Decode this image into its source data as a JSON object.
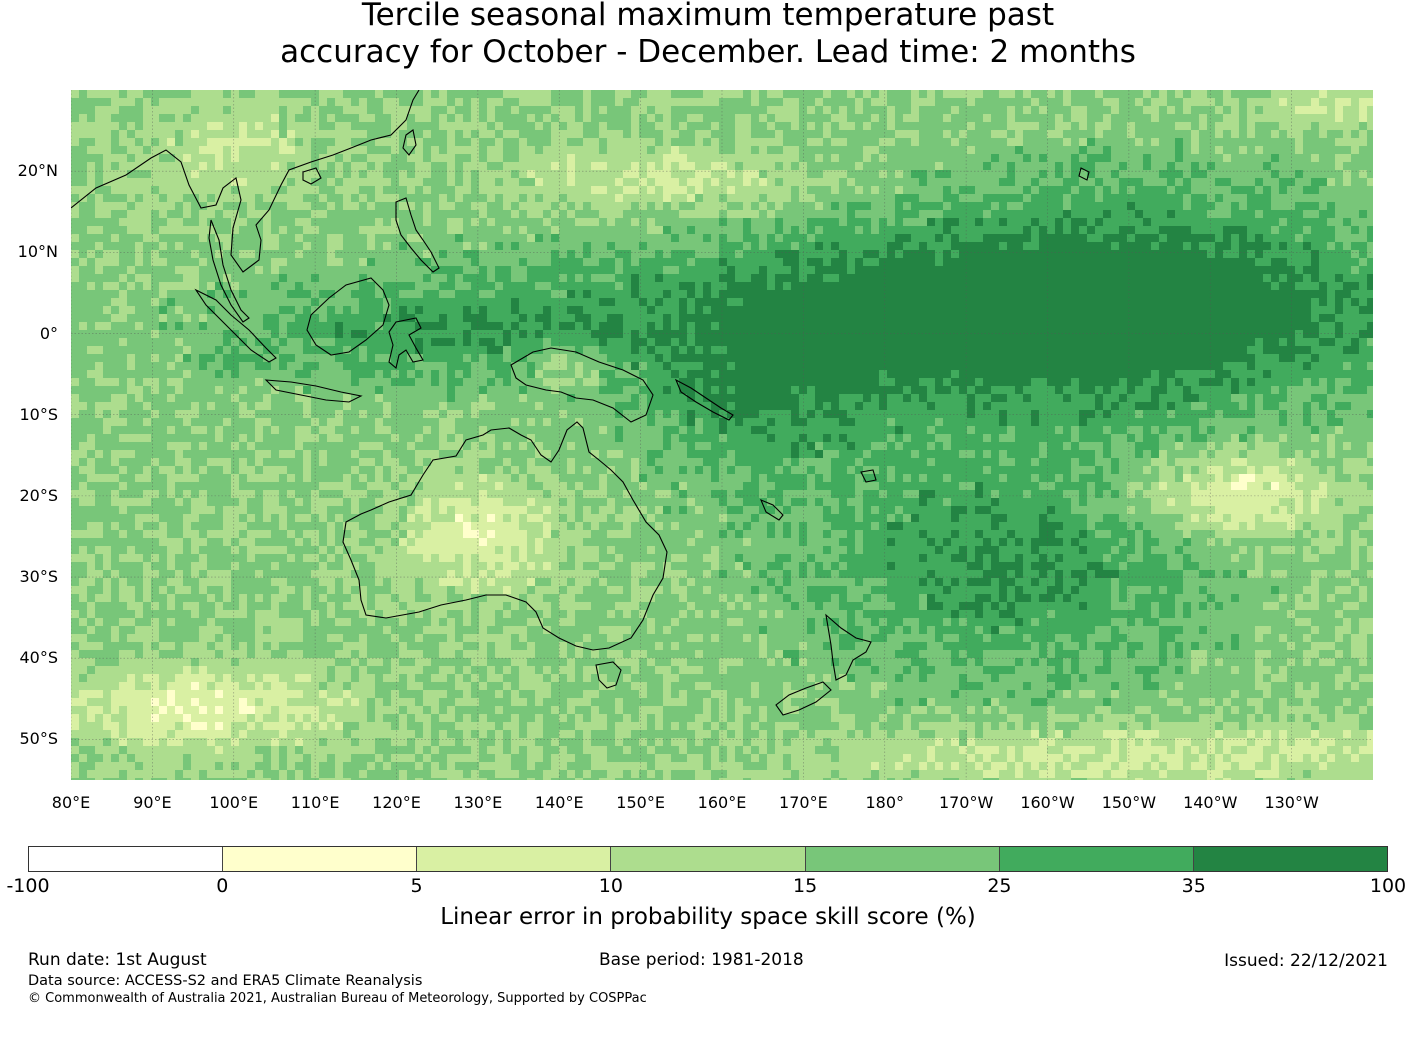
{
  "title": {
    "line1": "Tercile seasonal maximum temperature past",
    "line2": "accuracy for October - December. Lead time: 2 months"
  },
  "map": {
    "lat_labels": [
      "20°N",
      "10°N",
      "0°",
      "10°S",
      "20°S",
      "30°S",
      "40°S",
      "50°S"
    ],
    "lat_values": [
      20,
      10,
      0,
      -10,
      -20,
      -30,
      -40,
      -50
    ],
    "lon_labels": [
      "80°E",
      "90°E",
      "100°E",
      "110°E",
      "120°E",
      "130°E",
      "140°E",
      "150°E",
      "160°E",
      "170°E",
      "180°",
      "170°W",
      "160°W",
      "150°W",
      "140°W",
      "130°W"
    ],
    "lon_values": [
      80,
      90,
      100,
      110,
      120,
      130,
      140,
      150,
      160,
      170,
      180,
      190,
      200,
      210,
      220,
      230
    ],
    "lon_range": [
      80,
      240
    ],
    "lat_range": [
      -55,
      30
    ]
  },
  "colorbar": {
    "label": "Linear error in probability space skill score (%)",
    "ticks": [
      "-100",
      "0",
      "5",
      "10",
      "15",
      "25",
      "35",
      "100"
    ],
    "colors": [
      "#ffffff",
      "#ffffcc",
      "#d9f0a3",
      "#addd8e",
      "#78c679",
      "#41ab5d",
      "#238443"
    ]
  },
  "footer": {
    "run_date": "Run date: 1st August",
    "base_period": "Base period: 1981-2018",
    "issued": "Issued: 22/12/2021",
    "data_source": "Data source: ACCESS-S2 and ERA5 Climate Reanalysis",
    "copyright": "© Commonwealth of Australia 2021, Australian Bureau of Meteorology, Supported by COSPPac"
  }
}
